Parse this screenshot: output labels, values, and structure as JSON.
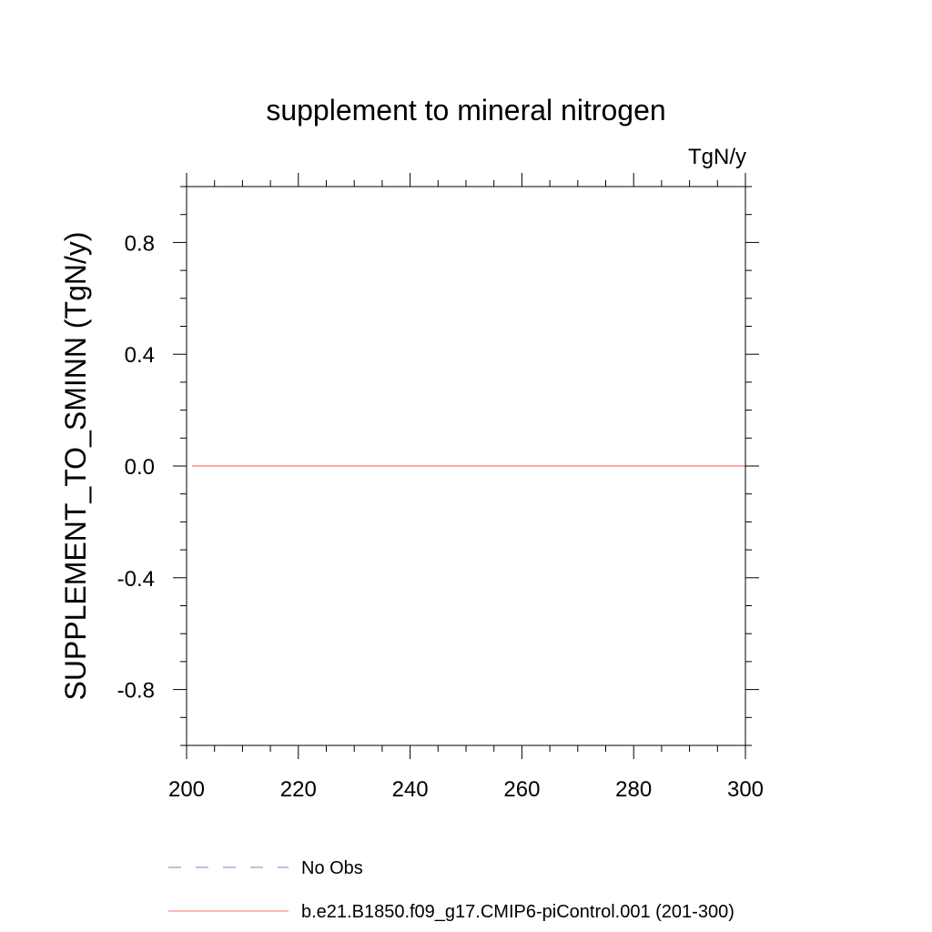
{
  "chart_data": {
    "type": "line",
    "title": "supplement to mineral nitrogen",
    "units": "TgN/y",
    "xlabel": "",
    "ylabel": "SUPPLEMENT_TO_SMINN  (TgN/y)",
    "xlim": [
      200,
      300
    ],
    "ylim": [
      -1.0,
      1.0
    ],
    "x_ticks": [
      200,
      220,
      240,
      260,
      280,
      300
    ],
    "x_tick_labels": [
      "200",
      "220",
      "240",
      "260",
      "280",
      "300"
    ],
    "y_ticks": [
      0.8,
      0.4,
      0.0,
      -0.4,
      -0.8
    ],
    "y_tick_labels": [
      "0.8",
      "0.4",
      "0.0",
      "-0.4",
      "-0.8"
    ],
    "x_minor_step": 5,
    "y_minor_step": 0.1,
    "grid": false,
    "series": [
      {
        "name": "No Obs",
        "color": "#8080c0",
        "dash": "dashed",
        "x": [],
        "values": []
      },
      {
        "name": "b.e21.B1850.f09_g17.CMIP6-piControl.001 (201-300)",
        "color": "#ff7070",
        "dash": "solid",
        "x": [
          201,
          300
        ],
        "values": [
          0.0,
          0.0
        ]
      }
    ],
    "legend": {
      "position": "bottom-left",
      "entries": [
        "No Obs",
        "b.e21.B1850.f09_g17.CMIP6-piControl.001 (201-300)"
      ]
    }
  }
}
